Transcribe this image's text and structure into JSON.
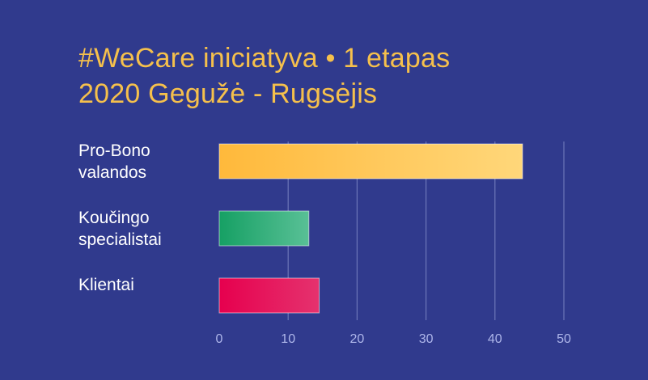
{
  "chart_data": {
    "type": "bar",
    "orientation": "horizontal",
    "title": [
      "#WeCare iniciatyva • 1 etapas",
      "2020 Gegužė - Rugsėjis"
    ],
    "categories": [
      [
        "Pro-Bono",
        "valandos"
      ],
      [
        "Koučingo",
        "specialistai"
      ],
      [
        "Klientai"
      ]
    ],
    "values": [
      44,
      13,
      14.5
    ],
    "xlim": [
      0,
      50
    ],
    "xticks": [
      0,
      10,
      20,
      30,
      40,
      50
    ],
    "grid": true,
    "bar_colors": [
      [
        "#ffb93b",
        "#ffd77a"
      ],
      [
        "#16a064",
        "#59c096"
      ],
      [
        "#e6004e",
        "#e5326e"
      ]
    ],
    "colors": {
      "background": "#303a8d",
      "title": "#f5c04c",
      "grid": "#6c76b8",
      "label": "#ffffff",
      "tick": "#aeb6ea"
    }
  }
}
